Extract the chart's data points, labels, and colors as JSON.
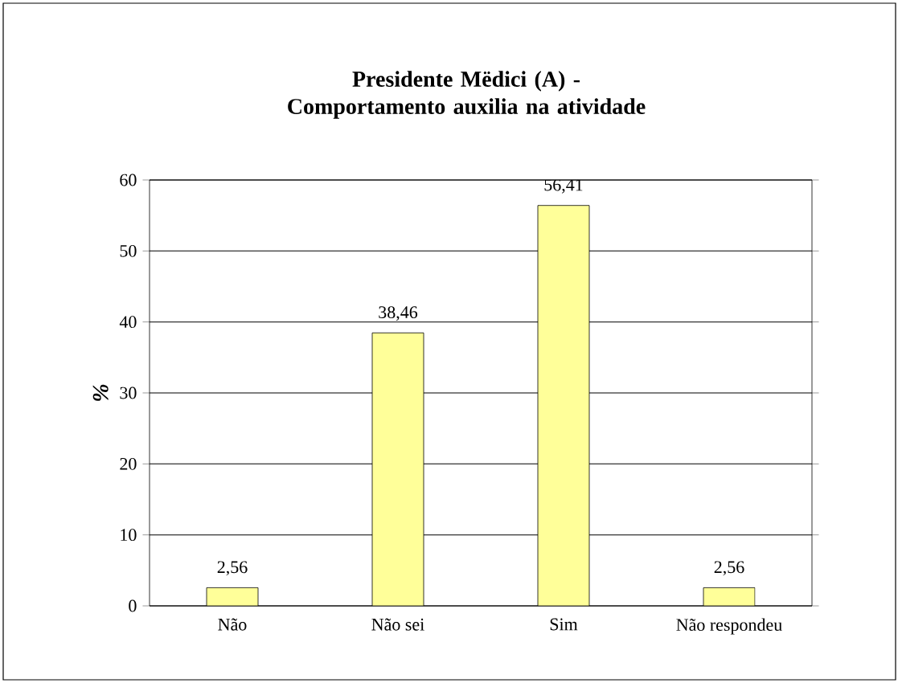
{
  "chart_data": {
    "type": "bar",
    "title": "**Presidente Mëdici (A) - Comportamento auxilia na atividade**",
    "ylabel": "%",
    "categories": [
      "Não",
      "Não sei",
      "Sim",
      "Não respondeu"
    ],
    "values": [
      2.56,
      38.46,
      56.41,
      2.56
    ],
    "value_labels": [
      "2,56",
      "38,46",
      "56,41",
      "2,56"
    ],
    "color": "#ffff99",
    "ylim": [
      0,
      60
    ],
    "yticks": [
      0,
      10,
      20,
      30,
      40,
      50,
      60
    ],
    "grid": "y"
  }
}
